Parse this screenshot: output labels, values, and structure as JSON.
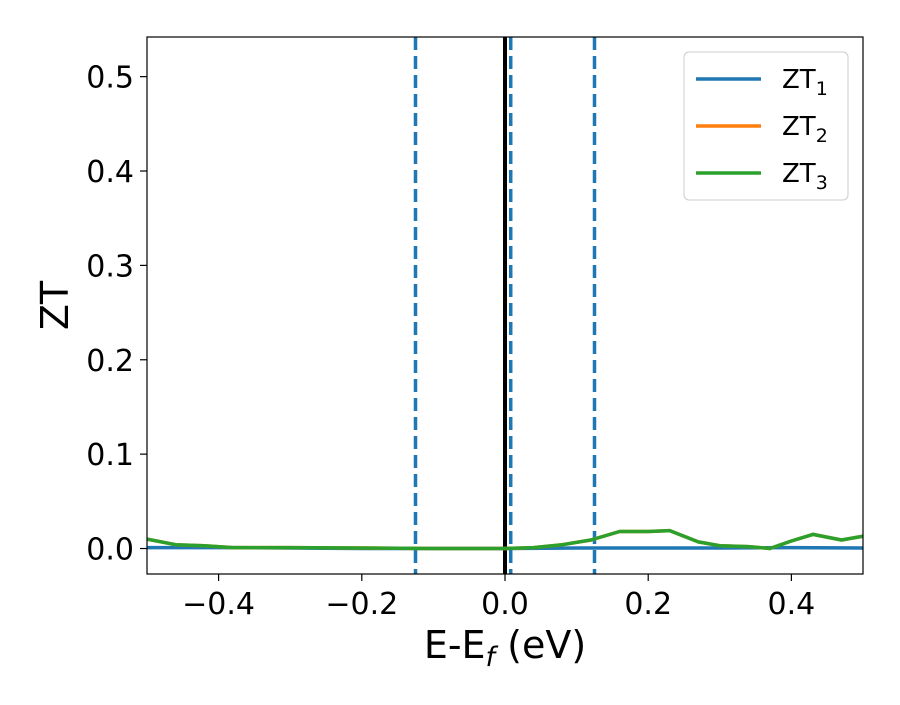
{
  "chart_data": {
    "type": "line",
    "xlabel": "E-E",
    "xlabel_sub": "f",
    "xlabel_unit": " (eV)",
    "ylabel": "ZT",
    "xlim": [
      -0.5,
      0.5
    ],
    "ylim": [
      -0.027,
      0.542
    ],
    "xticks": [
      -0.4,
      -0.2,
      0.0,
      0.2,
      0.4
    ],
    "xtick_labels": [
      "−0.4",
      "−0.2",
      "0.0",
      "0.2",
      "0.4"
    ],
    "yticks": [
      0.0,
      0.1,
      0.2,
      0.3,
      0.4,
      0.5
    ],
    "ytick_labels": [
      "0.0",
      "0.1",
      "0.2",
      "0.3",
      "0.4",
      "0.5"
    ],
    "grid": false,
    "legend_position": "top-right",
    "series": [
      {
        "name": "ZT",
        "name_sub": "1",
        "color": "#1f77b4",
        "x": [
          -0.5,
          -0.4,
          -0.3,
          -0.2,
          -0.1,
          0.0,
          0.1,
          0.2,
          0.3,
          0.4,
          0.5
        ],
        "y": [
          0.001,
          0.001,
          0.0005,
          0.0,
          0.0,
          0.0,
          0.0005,
          0.0005,
          0.0005,
          0.001,
          0.0005
        ]
      },
      {
        "name": "ZT",
        "name_sub": "2",
        "color": "#ff7f0e",
        "x": [
          -0.5,
          -0.46,
          -0.42,
          -0.38,
          -0.3,
          -0.2,
          -0.1,
          0.0,
          0.04,
          0.08,
          0.12,
          0.16,
          0.2,
          0.23,
          0.27,
          0.3,
          0.34,
          0.37,
          0.4,
          0.43,
          0.47,
          0.5
        ],
        "y": [
          0.01,
          0.004,
          0.003,
          0.001,
          0.001,
          0.0005,
          0.0,
          0.0,
          0.001,
          0.004,
          0.009,
          0.018,
          0.018,
          0.019,
          0.007,
          0.003,
          0.002,
          0.0,
          0.008,
          0.015,
          0.009,
          0.013
        ]
      },
      {
        "name": "ZT",
        "name_sub": "3",
        "color": "#2ca02c",
        "x": [
          -0.5,
          -0.46,
          -0.42,
          -0.38,
          -0.3,
          -0.2,
          -0.1,
          0.0,
          0.04,
          0.08,
          0.12,
          0.16,
          0.2,
          0.23,
          0.27,
          0.3,
          0.34,
          0.37,
          0.4,
          0.43,
          0.47,
          0.5
        ],
        "y": [
          0.01,
          0.004,
          0.003,
          0.001,
          0.001,
          0.0005,
          0.0,
          0.0,
          0.001,
          0.004,
          0.009,
          0.018,
          0.018,
          0.019,
          0.007,
          0.003,
          0.002,
          0.0,
          0.008,
          0.015,
          0.009,
          0.013
        ]
      }
    ],
    "vlines": [
      {
        "x": -0.125,
        "color": "#1f77b4",
        "style": "dashed"
      },
      {
        "x": 0.0,
        "color": "#000000",
        "style": "solid"
      },
      {
        "x": 0.008,
        "color": "#1f77b4",
        "style": "dashed"
      },
      {
        "x": 0.125,
        "color": "#1f77b4",
        "style": "dashed"
      }
    ]
  }
}
